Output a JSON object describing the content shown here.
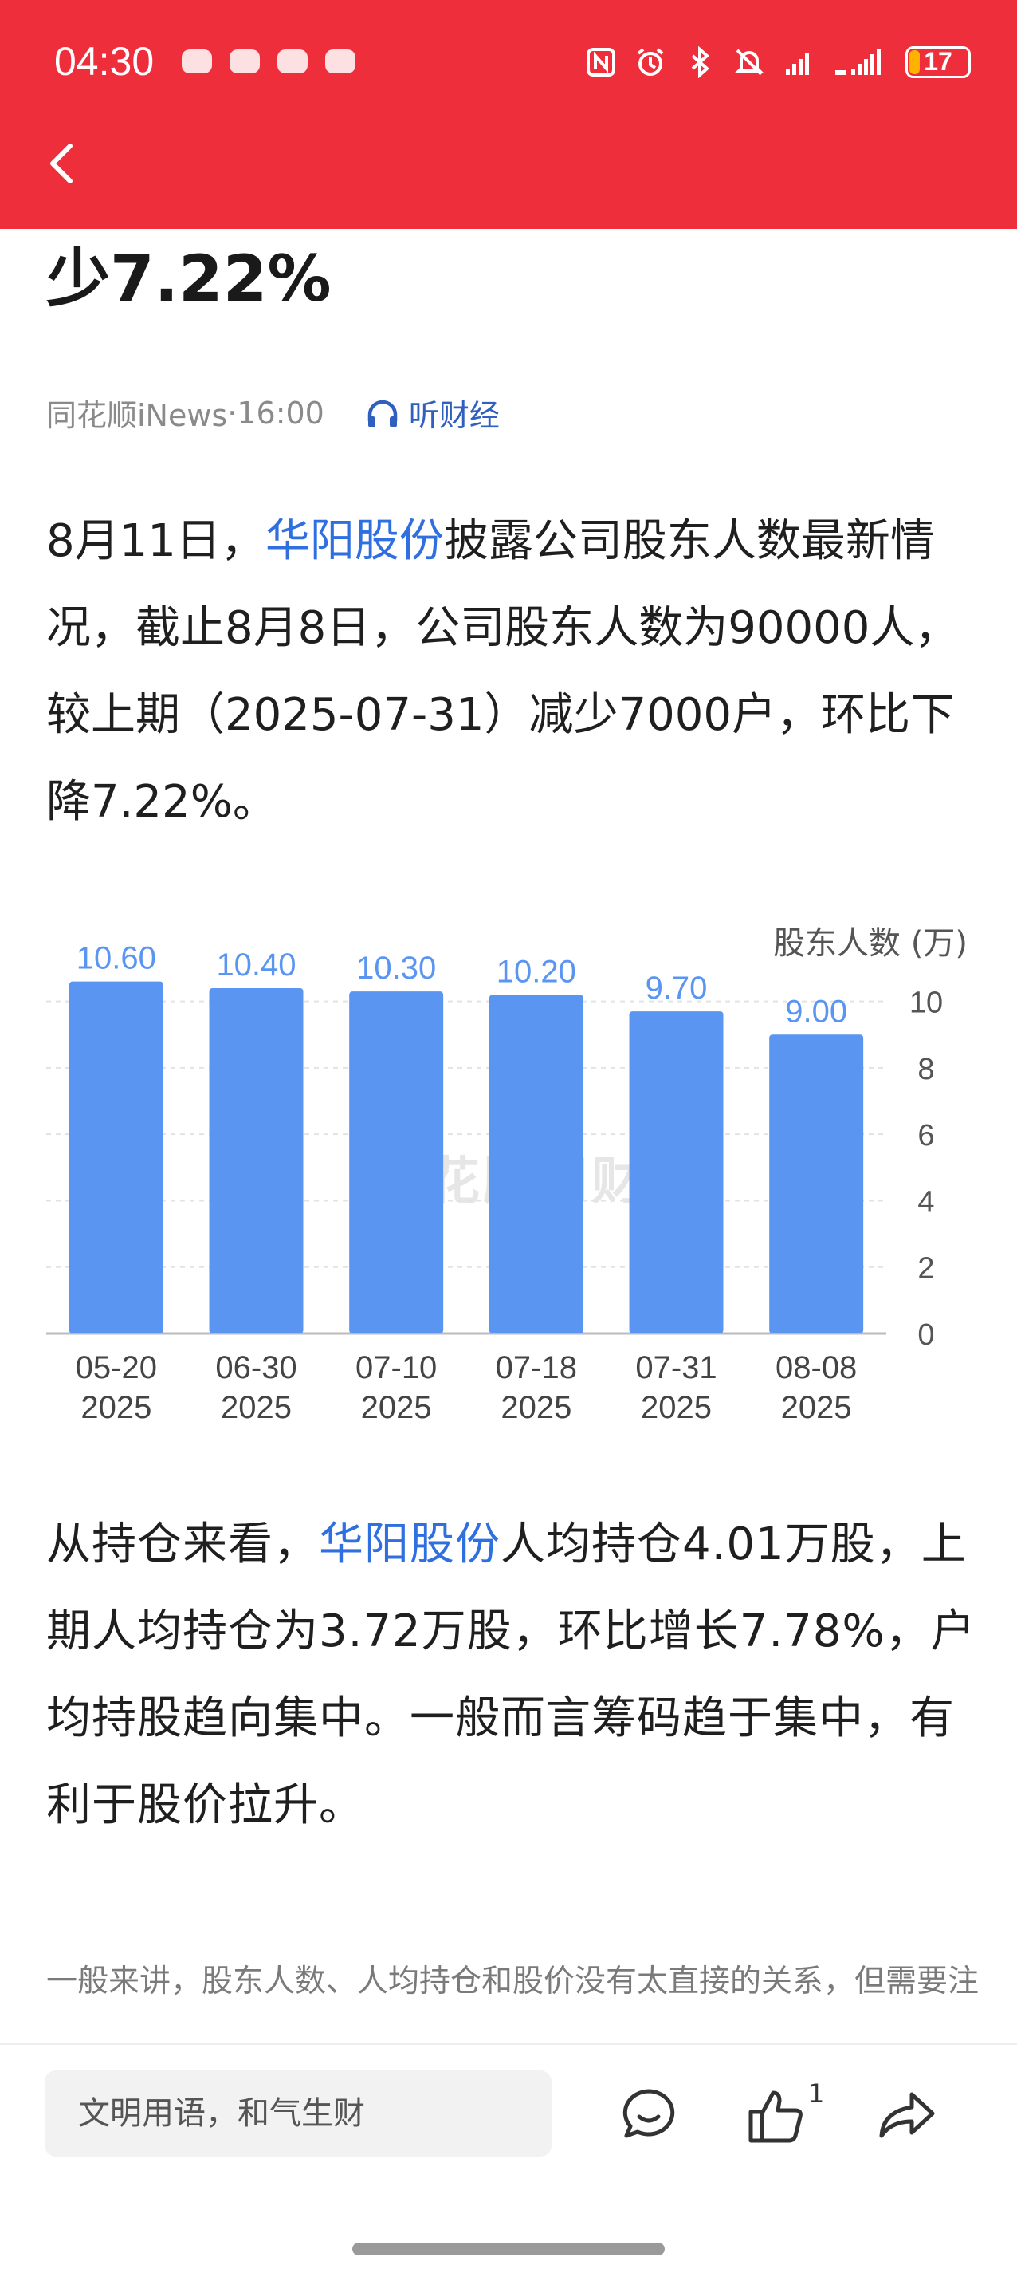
{
  "status": {
    "time": "04:30",
    "battery": "17",
    "battery_level": 0.17,
    "icons": [
      "nfc-icon",
      "alarm-icon",
      "bluetooth-icon",
      "mute-icon",
      "signal-icon",
      "signal-5g-icon"
    ]
  },
  "article": {
    "headline_tail": "少7.22%",
    "source": "同花顺iNews",
    "separator": "·",
    "time": "16:00",
    "listen_label": "听财经",
    "p1": {
      "part1": "8月11日，",
      "stock": "华阳股份",
      "part2": "披露公司股东人数最新情况，截止8月8日，公司股东人数为90000人，较上期（2025-07-31）减少7000户，环比下降7.22%。"
    },
    "p2": {
      "part1": "从持仓来看，",
      "stock": "华阳股份",
      "part2": "人均持仓4.01万股，上期人均持仓为3.72万股，环比增长7.78%，户均持股趋向集中。一般而言筹码趋于集中，有利于股价拉升。"
    },
    "note": "一般来讲，股东人数、人均持仓和股价没有太直接的关系，但需要注意的是，如果股东人数连续增加，可能是机构退出，把"
  },
  "chart_data": {
    "type": "bar",
    "ylabel": "股东人数 (万)",
    "categories": [
      [
        "05-20",
        "2025"
      ],
      [
        "06-30",
        "2025"
      ],
      [
        "07-10",
        "2025"
      ],
      [
        "07-18",
        "2025"
      ],
      [
        "07-31",
        "2025"
      ],
      [
        "08-08",
        "2025"
      ]
    ],
    "values": [
      10.6,
      10.4,
      10.3,
      10.2,
      9.7,
      9.0
    ],
    "value_labels": [
      "10.60",
      "10.40",
      "10.30",
      "10.20",
      "9.70",
      "9.00"
    ],
    "yticks": [
      "0",
      "2",
      "4",
      "6",
      "8",
      "10"
    ],
    "ylim": [
      0,
      11
    ],
    "y_axis_side": "right",
    "grid": true,
    "bar_color": "#5b95f2",
    "label_color": "#5b95f2",
    "watermark": "同花顺问财"
  },
  "bottom": {
    "comment_placeholder": "文明用语，和气生财",
    "like_count": "1"
  }
}
